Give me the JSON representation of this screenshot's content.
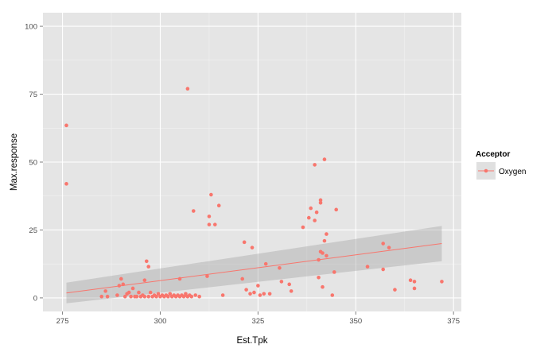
{
  "chart_data": {
    "type": "scatter",
    "title": "",
    "xlabel": "Est.Tpk",
    "ylabel": "Max.response",
    "xlim": [
      270,
      377
    ],
    "ylim": [
      -5,
      105
    ],
    "x_ticks": [
      275,
      300,
      325,
      350,
      375
    ],
    "y_ticks": [
      0,
      25,
      50,
      75,
      100
    ],
    "grid": true,
    "legend": {
      "title": "Acceptor",
      "placement": "right",
      "entries": [
        "Oxygen"
      ]
    },
    "colors": {
      "point": "#F8766D",
      "line": "#F8766D",
      "ribbon": "#999999",
      "panel": "#E5E5E5",
      "grid_major": "#FFFFFF",
      "grid_minor": "#F2F2F2"
    },
    "series": [
      {
        "name": "Oxygen",
        "points": [
          [
            276,
            63.5
          ],
          [
            276,
            42
          ],
          [
            285,
            0.5
          ],
          [
            286,
            2.5
          ],
          [
            286.5,
            0.5
          ],
          [
            289,
            1
          ],
          [
            289.5,
            4.5
          ],
          [
            290,
            7
          ],
          [
            290.5,
            5
          ],
          [
            291,
            0.5
          ],
          [
            291.5,
            1.5
          ],
          [
            292,
            2
          ],
          [
            292.5,
            0.5
          ],
          [
            293,
            3.5
          ],
          [
            293.5,
            0.5
          ],
          [
            294,
            0.5
          ],
          [
            294.5,
            2
          ],
          [
            295,
            0.5
          ],
          [
            295.5,
            1
          ],
          [
            296,
            0.5
          ],
          [
            296,
            6.5
          ],
          [
            296.5,
            13.5
          ],
          [
            297,
            11.5
          ],
          [
            297,
            0.5
          ],
          [
            297.5,
            2
          ],
          [
            298,
            0.5
          ],
          [
            298.5,
            1
          ],
          [
            299,
            0.5
          ],
          [
            299.5,
            1.5
          ],
          [
            300,
            0.5
          ],
          [
            300.5,
            1
          ],
          [
            301,
            0.5
          ],
          [
            301.5,
            1
          ],
          [
            302,
            0.5
          ],
          [
            302.5,
            1.5
          ],
          [
            303,
            0.5
          ],
          [
            303.5,
            1
          ],
          [
            304,
            0.5
          ],
          [
            304.5,
            1
          ],
          [
            305,
            0.5
          ],
          [
            305,
            7
          ],
          [
            305.5,
            1
          ],
          [
            306,
            0.5
          ],
          [
            306.5,
            1
          ],
          [
            306.5,
            1.5
          ],
          [
            307,
            77
          ],
          [
            307,
            0.5
          ],
          [
            307.5,
            1
          ],
          [
            308,
            0.5
          ],
          [
            308.5,
            32
          ],
          [
            309,
            1
          ],
          [
            310,
            0.5
          ],
          [
            312,
            8
          ],
          [
            312.5,
            27
          ],
          [
            312.5,
            30
          ],
          [
            313,
            38
          ],
          [
            314,
            27
          ],
          [
            315,
            34
          ],
          [
            316,
            1
          ],
          [
            321,
            7
          ],
          [
            321.5,
            20.5
          ],
          [
            322,
            3
          ],
          [
            323,
            1.5
          ],
          [
            323.5,
            18.5
          ],
          [
            324,
            2
          ],
          [
            325,
            4.5
          ],
          [
            325.5,
            1
          ],
          [
            326.5,
            1.5
          ],
          [
            327,
            12.5
          ],
          [
            328,
            1.5
          ],
          [
            330.5,
            11
          ],
          [
            331,
            6
          ],
          [
            333,
            5
          ],
          [
            333.5,
            2.5
          ],
          [
            336.5,
            26
          ],
          [
            338,
            29.5
          ],
          [
            338.5,
            33
          ],
          [
            339.5,
            28.5
          ],
          [
            339.5,
            49
          ],
          [
            340,
            31.5
          ],
          [
            340.5,
            7.5
          ],
          [
            340.5,
            14
          ],
          [
            341,
            36
          ],
          [
            341,
            35
          ],
          [
            341,
            17
          ],
          [
            341.5,
            16.5
          ],
          [
            341.5,
            4
          ],
          [
            342,
            51
          ],
          [
            342,
            21
          ],
          [
            342.5,
            15.5
          ],
          [
            342.5,
            23.5
          ],
          [
            344,
            1
          ],
          [
            344.5,
            9.5
          ],
          [
            345,
            32.5
          ],
          [
            353,
            11.5
          ],
          [
            357,
            20
          ],
          [
            357,
            10.5
          ],
          [
            358.5,
            18.5
          ],
          [
            360,
            3
          ],
          [
            364,
            6.5
          ],
          [
            365,
            6
          ],
          [
            365,
            3.5
          ],
          [
            372,
            6
          ]
        ]
      }
    ],
    "fit": {
      "type": "linear",
      "x_range": [
        276,
        372
      ],
      "y_start": 1.8,
      "y_end": 20.0,
      "ci_lower": [
        -2.0,
        13.5
      ],
      "ci_upper": [
        5.6,
        26.5
      ]
    }
  }
}
